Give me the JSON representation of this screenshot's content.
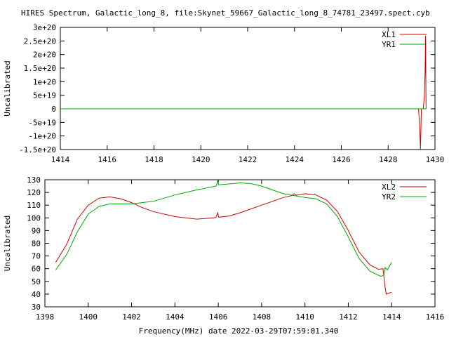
{
  "title": "HIRES Spectrum, Galactic_long_8, file:Skynet_59667_Galactic_long_8_74781_23497.spect.cyb",
  "colors": {
    "red": "#cc0000",
    "green": "#00aa00"
  },
  "chart_data": [
    {
      "type": "line",
      "ylabel": "Uncalibrated",
      "xlabel": "",
      "xlim": [
        1414,
        1430
      ],
      "ylim": [
        -1.5e+20,
        3e+20
      ],
      "x_ticks": [
        1414,
        1416,
        1418,
        1420,
        1422,
        1424,
        1426,
        1428,
        1430
      ],
      "x_tick_labels": [
        "1414",
        "1416",
        "1418",
        "1420",
        "1422",
        "1424",
        "1426",
        "1428",
        "1430"
      ],
      "y_ticks": [
        -1.5e+20,
        -1e+20,
        -5e+19,
        0,
        5e+19,
        1e+20,
        1.5e+20,
        2e+20,
        2.5e+20,
        3e+20
      ],
      "y_tick_labels": [
        "-1.5e+20",
        "-1e+20",
        "-5e+19",
        "0",
        "5e+19",
        "1e+20",
        "1.5e+20",
        "2e+20",
        "2.5e+20",
        "3e+20"
      ],
      "legend_position": "top-right",
      "series": [
        {
          "name": "XL1",
          "color": "#cc0000",
          "points": [
            [
              1414,
              0
            ],
            [
              1429.3,
              0
            ],
            [
              1429.35,
              -7e+19
            ],
            [
              1429.38,
              -1.5e+20
            ],
            [
              1429.42,
              0
            ],
            [
              1429.5,
              0
            ],
            [
              1429.55,
              5e+19
            ],
            [
              1429.58,
              1.5e+20
            ],
            [
              1429.6,
              2.7e+20
            ],
            [
              1429.62,
              0
            ]
          ]
        },
        {
          "name": "YR1",
          "color": "#00aa00",
          "points": [
            [
              1414,
              0
            ],
            [
              1429.62,
              0
            ]
          ]
        }
      ]
    },
    {
      "type": "line",
      "ylabel": "Uncalibrated",
      "xlabel": "Frequency(MHz) date 2022-03-29T07:59:01.340",
      "xlim": [
        1398,
        1416
      ],
      "ylim": [
        30,
        130
      ],
      "x_ticks": [
        1398,
        1400,
        1402,
        1404,
        1406,
        1408,
        1410,
        1412,
        1414,
        1416
      ],
      "x_tick_labels": [
        "1398",
        "1400",
        "1402",
        "1404",
        "1406",
        "1408",
        "1410",
        "1412",
        "1414",
        "1416"
      ],
      "y_ticks": [
        30,
        40,
        50,
        60,
        70,
        80,
        90,
        100,
        110,
        120,
        130
      ],
      "y_tick_labels": [
        "30",
        "40",
        "50",
        "60",
        "70",
        "80",
        "90",
        "100",
        "110",
        "120",
        "130"
      ],
      "legend_position": "top-right",
      "series": [
        {
          "name": "XL2",
          "color": "#cc0000",
          "points": [
            [
              1398.5,
              65
            ],
            [
              1399,
              79
            ],
            [
              1399.5,
              99
            ],
            [
              1400,
              110
            ],
            [
              1400.5,
              115.5
            ],
            [
              1401,
              116.5
            ],
            [
              1401.5,
              115
            ],
            [
              1402,
              112
            ],
            [
              1402.5,
              108
            ],
            [
              1403,
              105
            ],
            [
              1404,
              101
            ],
            [
              1405,
              99
            ],
            [
              1405.8,
              100
            ],
            [
              1405.9,
              100.5
            ],
            [
              1405.97,
              104
            ],
            [
              1406.02,
              100.5
            ],
            [
              1406.5,
              101.5
            ],
            [
              1407,
              104
            ],
            [
              1407.5,
              107
            ],
            [
              1408,
              110
            ],
            [
              1408.5,
              113
            ],
            [
              1409,
              116
            ],
            [
              1409.4,
              117.5
            ],
            [
              1409.5,
              119
            ],
            [
              1409.6,
              117.8
            ],
            [
              1410,
              119
            ],
            [
              1410.5,
              118
            ],
            [
              1411,
              114
            ],
            [
              1411.5,
              105
            ],
            [
              1412,
              90
            ],
            [
              1412.5,
              73
            ],
            [
              1413,
              63
            ],
            [
              1413.4,
              59.5
            ],
            [
              1413.6,
              60
            ],
            [
              1413.7,
              45
            ],
            [
              1413.75,
              40
            ],
            [
              1414,
              41.5
            ]
          ]
        },
        {
          "name": "YR2",
          "color": "#00aa00",
          "points": [
            [
              1398.5,
              59
            ],
            [
              1399,
              71
            ],
            [
              1399.5,
              89
            ],
            [
              1400,
              103
            ],
            [
              1400.5,
              109
            ],
            [
              1401,
              111
            ],
            [
              1402,
              111
            ],
            [
              1403,
              113
            ],
            [
              1404,
              118
            ],
            [
              1405,
              122
            ],
            [
              1405.9,
              125
            ],
            [
              1405.97,
              129
            ],
            [
              1406.02,
              126
            ],
            [
              1407,
              127.5
            ],
            [
              1407.5,
              127
            ],
            [
              1408,
              125
            ],
            [
              1408.5,
              122
            ],
            [
              1409,
              119
            ],
            [
              1409.5,
              117.5
            ],
            [
              1410,
              116
            ],
            [
              1410.5,
              115
            ],
            [
              1411,
              111
            ],
            [
              1411.5,
              101
            ],
            [
              1412,
              85
            ],
            [
              1412.5,
              68
            ],
            [
              1413,
              58
            ],
            [
              1413.5,
              54
            ],
            [
              1413.65,
              55
            ],
            [
              1413.7,
              61
            ],
            [
              1413.8,
              59
            ],
            [
              1414,
              65
            ]
          ]
        }
      ]
    }
  ]
}
